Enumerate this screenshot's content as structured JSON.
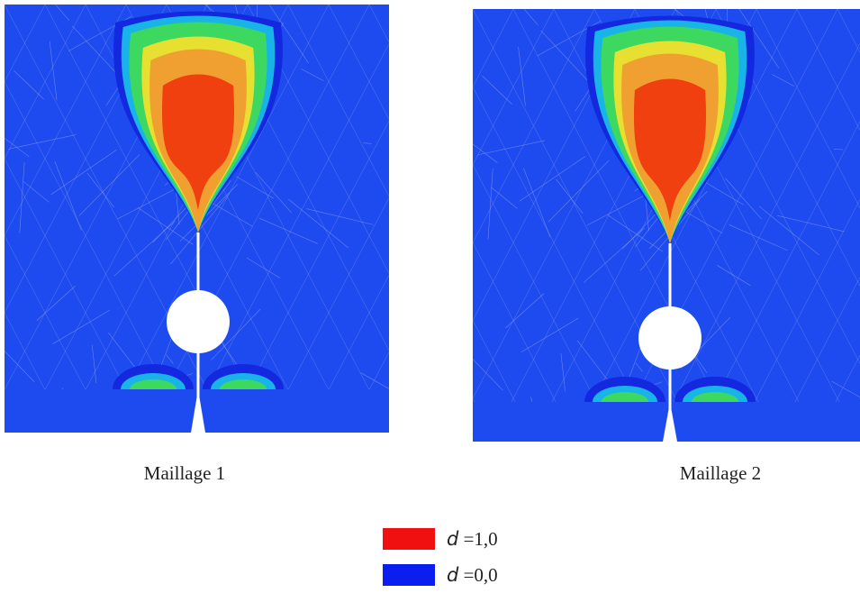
{
  "panels": [
    {
      "caption": "Maillage 1"
    },
    {
      "caption": "Maillage 2"
    }
  ],
  "legend": [
    {
      "variable": "d",
      "text": "=1,0",
      "color": "#f01010"
    },
    {
      "variable": "d",
      "text": "=0,0",
      "color": "#0a1ef0"
    }
  ]
}
